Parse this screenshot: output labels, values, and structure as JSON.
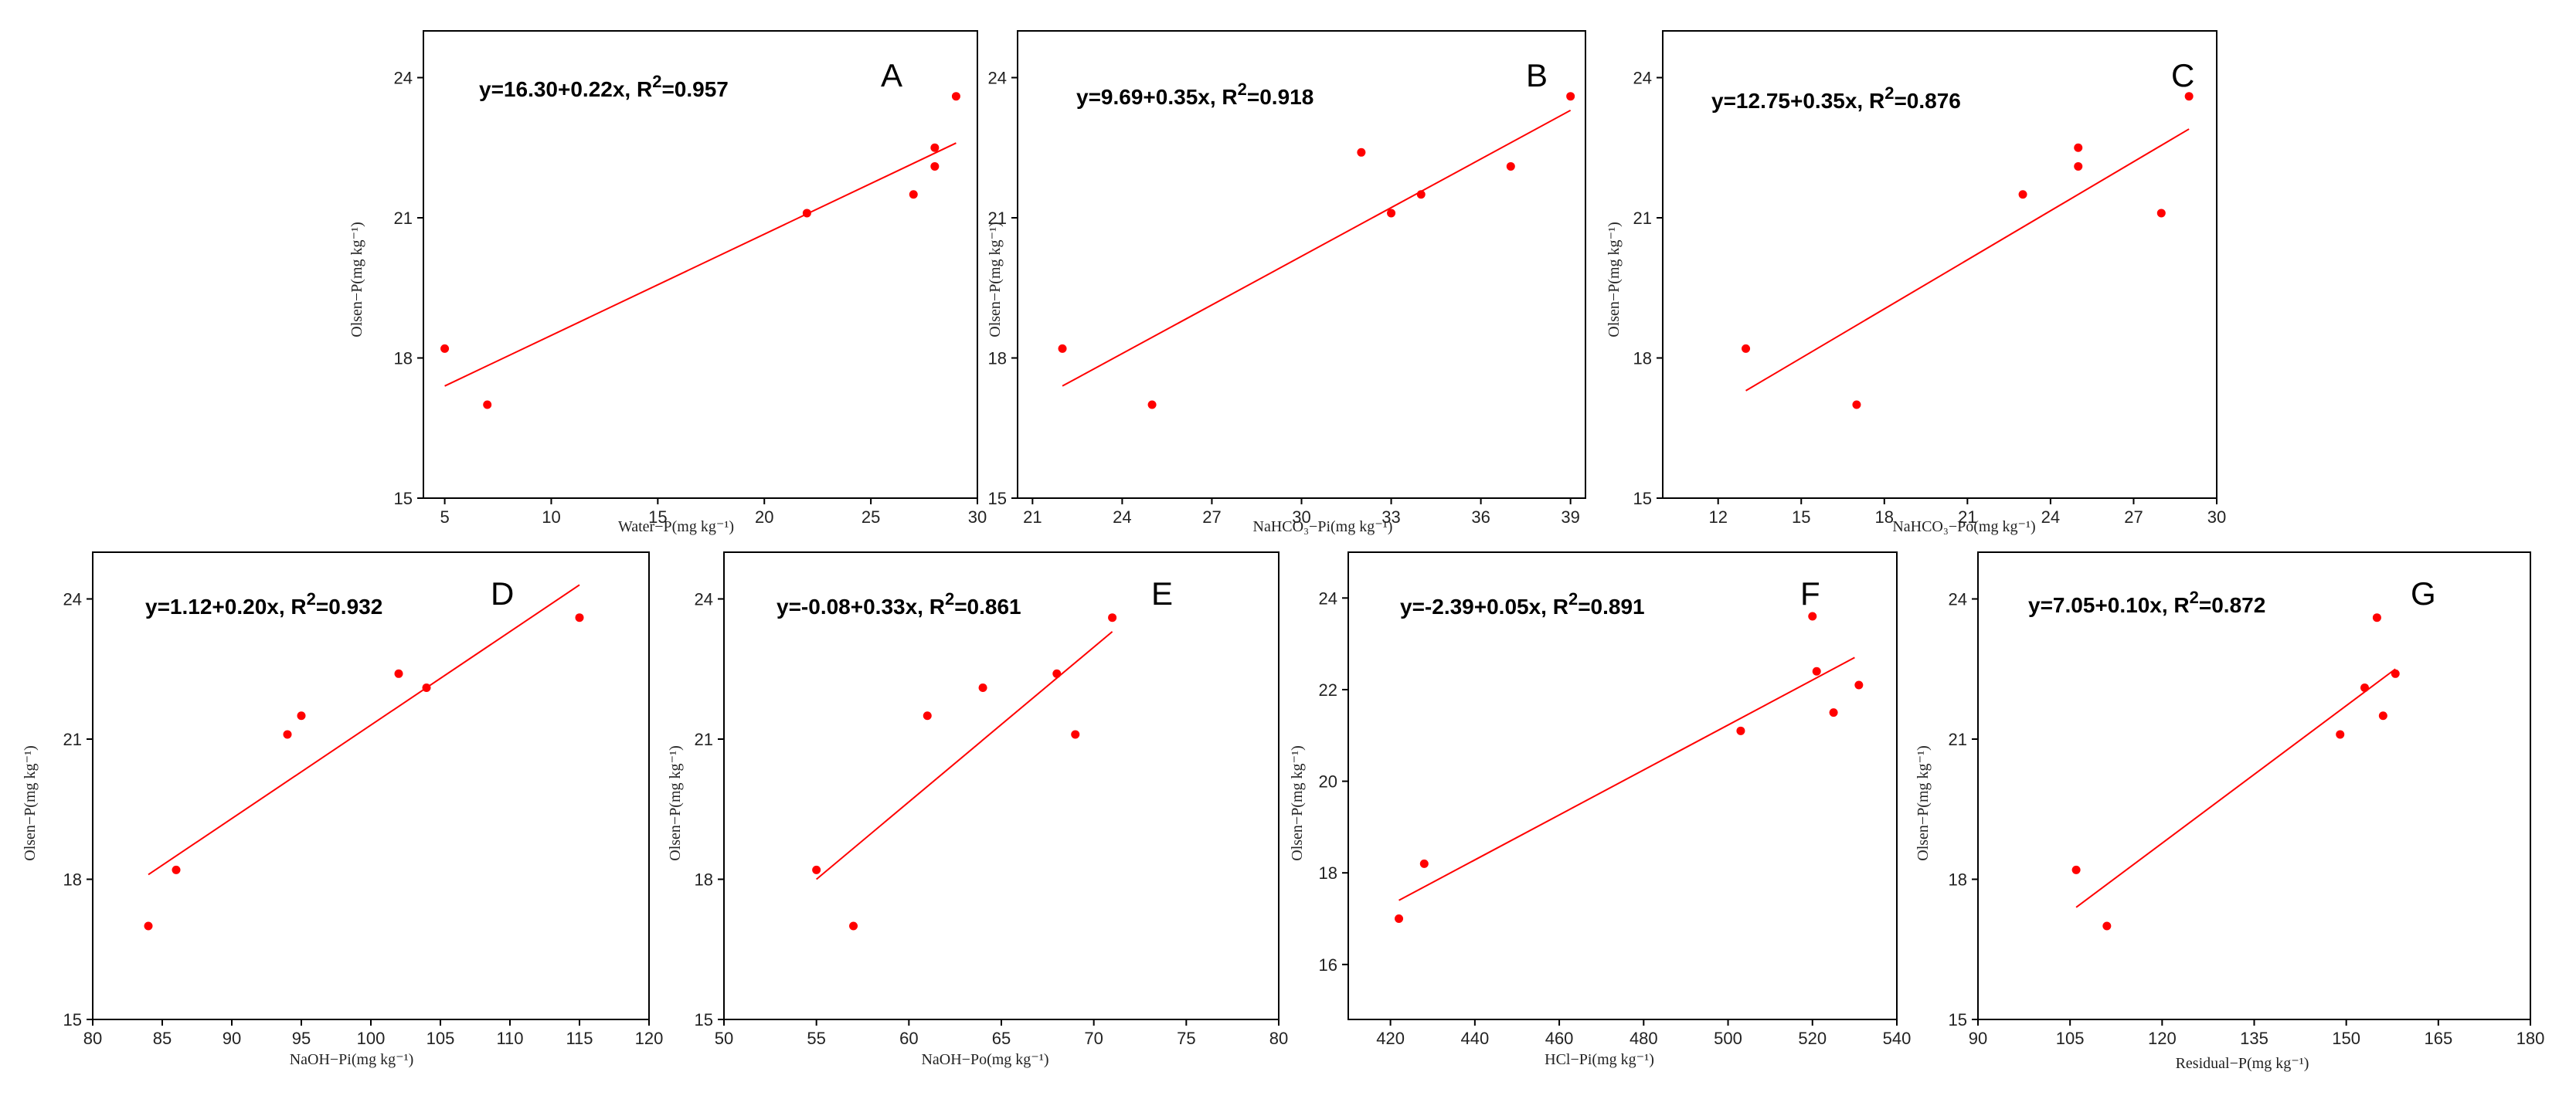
{
  "colors": {
    "points": "#ff0000",
    "fit_line": "#ff0000",
    "axes": "#000000",
    "background": "#ffffff"
  },
  "chart_data": [
    {
      "type": "scatter",
      "panel": "A",
      "equation": "y=16.30+0.22x, R",
      "r2_sup": "2",
      "r2_value": "=0.957",
      "xlabel": "Water−P(mg kg⁻¹)",
      "ylabel": "Olsen−P(mg kg⁻¹)",
      "xlim": [
        4,
        30
      ],
      "ylim": [
        15,
        25
      ],
      "xticks": [
        5,
        10,
        15,
        20,
        25,
        30
      ],
      "yticks": [
        15,
        18,
        21,
        24
      ],
      "x": [
        5,
        7,
        22,
        27,
        28,
        28,
        29
      ],
      "y": [
        18.2,
        17.0,
        21.1,
        21.5,
        22.1,
        22.5,
        23.6
      ],
      "fit": {
        "x": [
          5,
          29
        ],
        "y": [
          17.4,
          22.6
        ]
      }
    },
    {
      "type": "scatter",
      "panel": "B",
      "equation": "y=9.69+0.35x, R",
      "r2_sup": "2",
      "r2_value": "=0.918",
      "xlabel": "NaHCO₃−Pi(mg kg⁻¹)",
      "ylabel": "Olsen−P(mg kg⁻¹)",
      "xlim": [
        20.5,
        39.5
      ],
      "ylim": [
        15,
        25
      ],
      "xticks": [
        21,
        24,
        27,
        30,
        33,
        36,
        39
      ],
      "yticks": [
        15,
        18,
        21,
        24
      ],
      "x": [
        22,
        25,
        32,
        33,
        34,
        37,
        39
      ],
      "y": [
        18.2,
        17.0,
        22.4,
        21.1,
        21.5,
        22.1,
        23.6
      ],
      "fit": {
        "x": [
          22,
          39
        ],
        "y": [
          17.4,
          23.3
        ]
      }
    },
    {
      "type": "scatter",
      "panel": "C",
      "equation": "y=12.75+0.35x, R",
      "r2_sup": "2",
      "r2_value": "=0.876",
      "xlabel": "NaHCO₃−Po(mg kg⁻¹)",
      "ylabel": "Olsen−P(mg kg⁻¹)",
      "xlim": [
        10,
        30
      ],
      "ylim": [
        15,
        25
      ],
      "xticks": [
        12,
        15,
        18,
        21,
        24,
        27,
        30
      ],
      "yticks": [
        15,
        18,
        21,
        24
      ],
      "x": [
        13,
        17,
        23,
        25,
        25,
        28,
        29
      ],
      "y": [
        18.2,
        17.0,
        21.5,
        22.1,
        22.5,
        21.1,
        23.6
      ],
      "fit": {
        "x": [
          13,
          29
        ],
        "y": [
          17.3,
          22.9
        ]
      }
    },
    {
      "type": "scatter",
      "panel": "D",
      "equation": "y=1.12+0.20x, R",
      "r2_sup": "2",
      "r2_value": "=0.932",
      "xlabel": "NaOH−Pi(mg kg⁻¹)",
      "ylabel": "Olsen−P(mg kg⁻¹)",
      "xlim": [
        80,
        120
      ],
      "ylim": [
        15,
        25
      ],
      "xticks": [
        80,
        85,
        90,
        95,
        100,
        105,
        110,
        115,
        120
      ],
      "yticks": [
        15,
        18,
        21,
        24
      ],
      "x": [
        84,
        86,
        94,
        95,
        102,
        104,
        115
      ],
      "y": [
        17.0,
        18.2,
        21.1,
        21.5,
        22.4,
        22.1,
        23.6
      ],
      "fit": {
        "x": [
          84,
          115
        ],
        "y": [
          18.1,
          24.3
        ]
      }
    },
    {
      "type": "scatter",
      "panel": "E",
      "equation": "y=-0.08+0.33x, R",
      "r2_sup": "2",
      "r2_value": "=0.861",
      "xlabel": "NaOH−Po(mg kg⁻¹)",
      "ylabel": "Olsen−P(mg kg⁻¹)",
      "xlim": [
        50,
        80
      ],
      "ylim": [
        15,
        25
      ],
      "xticks": [
        50,
        55,
        60,
        65,
        70,
        75,
        80
      ],
      "yticks": [
        15,
        18,
        21,
        24
      ],
      "x": [
        55,
        57,
        61,
        64,
        68,
        69,
        71
      ],
      "y": [
        18.2,
        17.0,
        21.5,
        22.1,
        22.4,
        21.1,
        23.6
      ],
      "fit": {
        "x": [
          55,
          71
        ],
        "y": [
          18.0,
          23.3
        ]
      }
    },
    {
      "type": "scatter",
      "panel": "F",
      "equation": "y=-2.39+0.05x, R",
      "r2_sup": "2",
      "r2_value": "=0.891",
      "xlabel": "HCl−Pi(mg kg⁻¹)",
      "ylabel": "Olsen−P(mg kg⁻¹)",
      "xlim": [
        410,
        540
      ],
      "ylim": [
        14.8,
        25
      ],
      "xticks": [
        420,
        440,
        460,
        480,
        500,
        520,
        540
      ],
      "yticks": [
        16,
        18,
        20,
        22,
        24
      ],
      "x": [
        422,
        428,
        503,
        520,
        521,
        525,
        531
      ],
      "y": [
        17.0,
        18.2,
        21.1,
        23.6,
        22.4,
        21.5,
        22.1
      ],
      "fit": {
        "x": [
          422,
          530
        ],
        "y": [
          17.4,
          22.7
        ]
      }
    },
    {
      "type": "scatter",
      "panel": "G",
      "equation": "y=7.05+0.10x, R",
      "r2_sup": "2",
      "r2_value": "=0.872",
      "xlabel": "Residual−P(mg kg⁻¹)",
      "ylabel": "Olsen−P(mg kg⁻¹)",
      "xlim": [
        90,
        180
      ],
      "ylim": [
        15,
        25
      ],
      "xticks": [
        90,
        105,
        120,
        135,
        150,
        165,
        180
      ],
      "yticks": [
        15,
        18,
        21,
        24
      ],
      "x": [
        106,
        111,
        149,
        153,
        155,
        156,
        158
      ],
      "y": [
        18.2,
        17.0,
        21.1,
        22.1,
        23.6,
        21.5,
        22.4
      ],
      "fit": {
        "x": [
          106,
          158
        ],
        "y": [
          17.4,
          22.5
        ]
      }
    }
  ]
}
